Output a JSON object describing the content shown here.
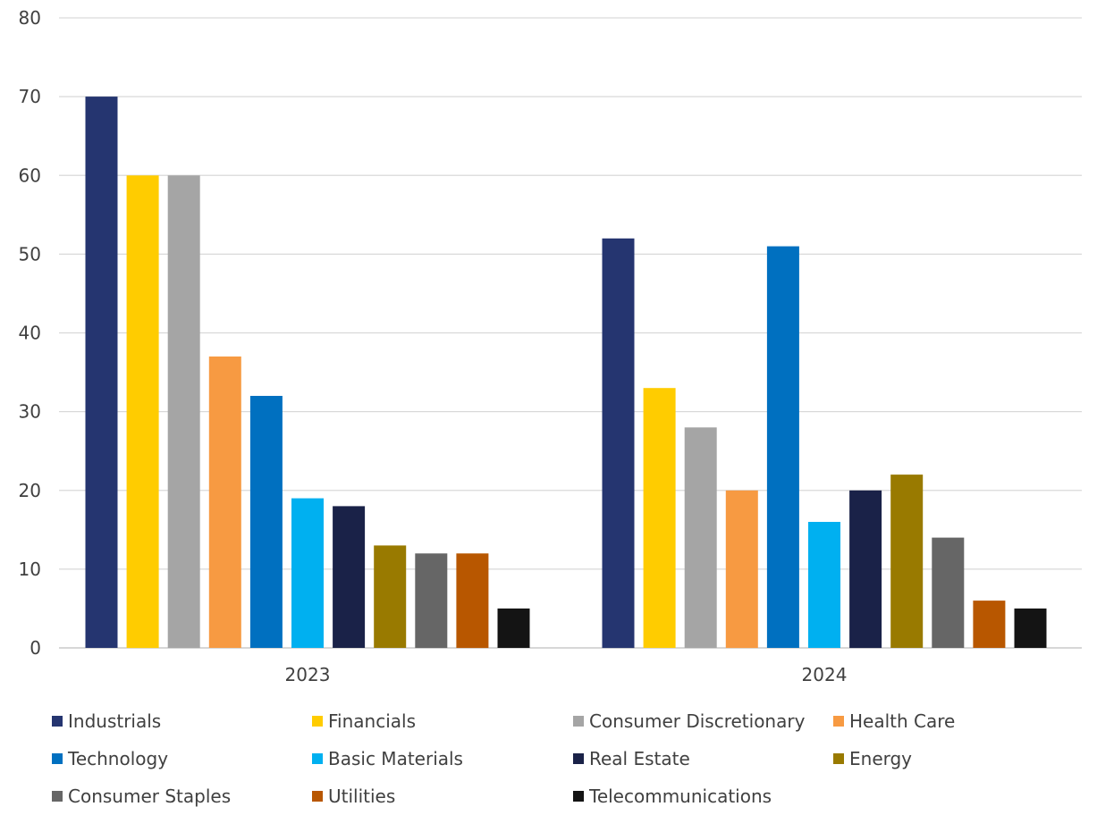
{
  "chart_data": {
    "type": "bar",
    "title": "",
    "xlabel": "",
    "ylabel": "",
    "categories": [
      "2023",
      "2024"
    ],
    "ylim": [
      0,
      80
    ],
    "yticks": [
      0,
      10,
      20,
      30,
      40,
      50,
      60,
      70,
      80
    ],
    "grid": true,
    "legend_position": "bottom",
    "series": [
      {
        "name": "Industrials",
        "color": "#253570",
        "values": [
          70,
          52
        ]
      },
      {
        "name": "Financials",
        "color": "#FFCC00",
        "values": [
          60,
          33
        ]
      },
      {
        "name": "Consumer Discretionary",
        "color": "#A5A5A5",
        "values": [
          60,
          28
        ]
      },
      {
        "name": "Health Care",
        "color": "#F79A42",
        "values": [
          37,
          20
        ]
      },
      {
        "name": "Technology",
        "color": "#0070C0",
        "values": [
          32,
          51
        ]
      },
      {
        "name": "Basic Materials",
        "color": "#00B0F0",
        "values": [
          19,
          16
        ]
      },
      {
        "name": "Real Estate",
        "color": "#1A2248",
        "values": [
          18,
          20
        ]
      },
      {
        "name": "Energy",
        "color": "#997A00",
        "values": [
          13,
          22
        ]
      },
      {
        "name": "Consumer Staples",
        "color": "#666666",
        "values": [
          12,
          14
        ]
      },
      {
        "name": "Utilities",
        "color": "#B85700",
        "values": [
          12,
          6
        ]
      },
      {
        "name": "Telecommunications",
        "color": "#141414",
        "values": [
          5,
          5
        ]
      }
    ]
  }
}
